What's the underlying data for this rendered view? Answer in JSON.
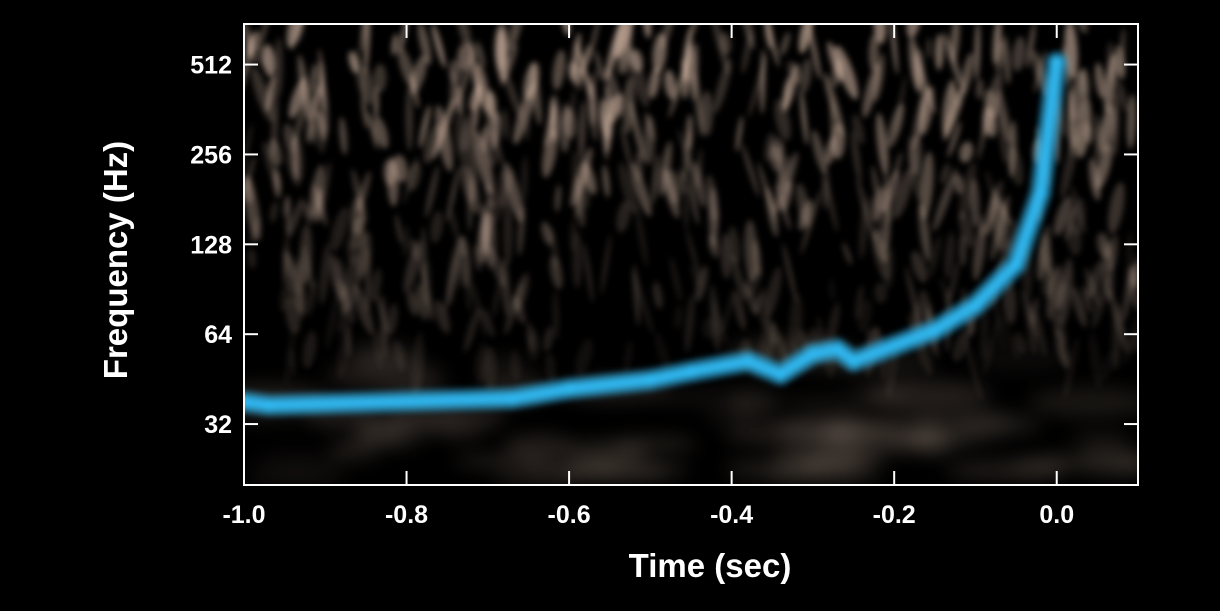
{
  "chart_data": {
    "type": "heatmap",
    "title": "",
    "xlabel": "Time (sec)",
    "ylabel": "Frequency (Hz)",
    "xlim": [
      -1.0,
      0.1
    ],
    "ylim": [
      20,
      700
    ],
    "y_scale": "log2",
    "x_ticks": [
      -1.0,
      -0.8,
      -0.6,
      -0.4,
      -0.2,
      0.0
    ],
    "x_tick_labels": [
      "-1.0",
      "-0.8",
      "-0.6",
      "-0.4",
      "-0.2",
      "0.0"
    ],
    "y_ticks": [
      32,
      64,
      128,
      256,
      512
    ],
    "y_tick_labels": [
      "32",
      "64",
      "128",
      "256",
      "512"
    ],
    "grid": false,
    "colors": {
      "background": "#000000",
      "noise": "#d8bba8",
      "signal": "#2fb6ee",
      "frame": "#ffffff"
    },
    "signal_track": {
      "name": "",
      "x": [
        -1.0,
        -0.97,
        -0.67,
        -0.6,
        -0.5,
        -0.45,
        -0.38,
        -0.34,
        -0.3,
        -0.27,
        -0.25,
        -0.15,
        -0.1,
        -0.05,
        -0.02,
        0.0
      ],
      "y": [
        38,
        37,
        39,
        42,
        45,
        48,
        52,
        47,
        55,
        57,
        52,
        66,
        80,
        110,
        190,
        520
      ]
    }
  }
}
